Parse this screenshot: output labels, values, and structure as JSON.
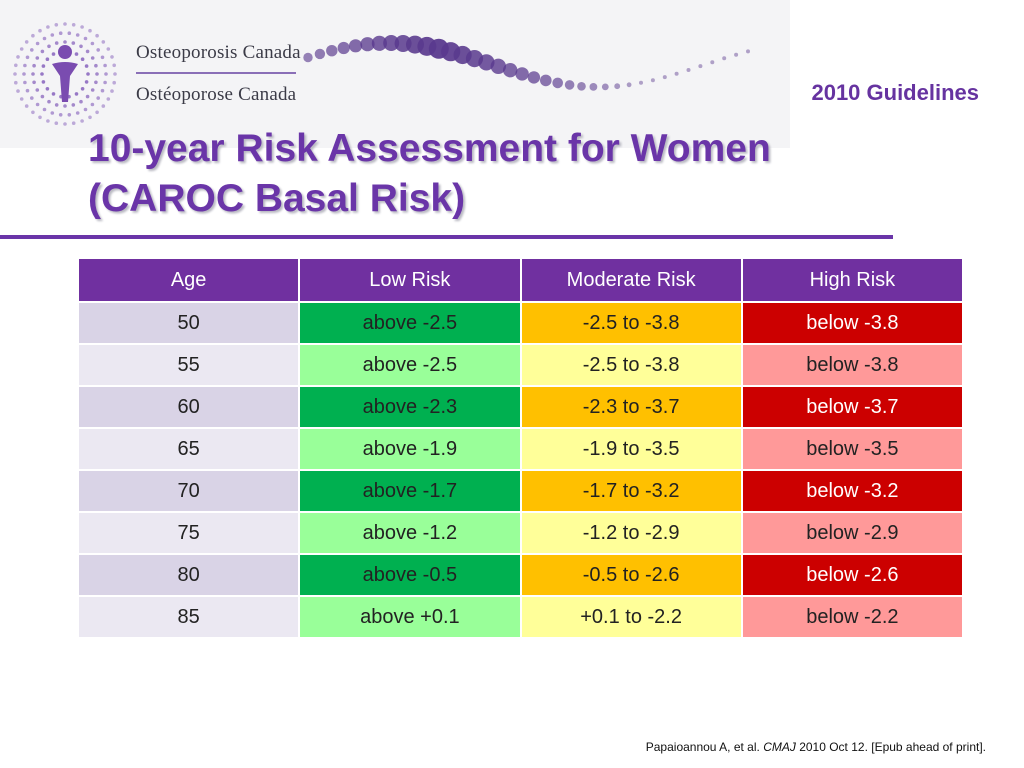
{
  "logo": {
    "name_en": "Osteoporosis Canada",
    "name_fr": "Ostéoporose Canada",
    "icon": "osteoporosis-canada-dotted-figure-logo",
    "dot_color": "#8e6cc0"
  },
  "header": {
    "guidelines": "2010 Guidelines",
    "title_line1": "10-year Risk Assessment for Women",
    "title_line2": "(CAROC Basal Risk)"
  },
  "colors": {
    "accent": "#6a35a8",
    "header_row": "#7030a0",
    "low_dark": "#00b050",
    "low_light": "#99ff99",
    "moderate_dark": "#ffc000",
    "moderate_light": "#ffff99",
    "high_dark": "#cc0000",
    "high_light": "#ff9999"
  },
  "table": {
    "headers": [
      "Age",
      "Low Risk",
      "Moderate Risk",
      "High Risk"
    ],
    "rows": [
      {
        "age": "50",
        "low": "above -2.5",
        "moderate": "-2.5 to -3.8",
        "high": "below -3.8"
      },
      {
        "age": "55",
        "low": "above -2.5",
        "moderate": "-2.5 to -3.8",
        "high": "below -3.8"
      },
      {
        "age": "60",
        "low": "above -2.3",
        "moderate": "-2.3 to -3.7",
        "high": "below -3.7"
      },
      {
        "age": "65",
        "low": "above -1.9",
        "moderate": "-1.9 to -3.5",
        "high": "below -3.5"
      },
      {
        "age": "70",
        "low": "above -1.7",
        "moderate": "-1.7 to -3.2",
        "high": "below -3.2"
      },
      {
        "age": "75",
        "low": "above -1.2",
        "moderate": "-1.2 to -2.9",
        "high": "below -2.9"
      },
      {
        "age": "80",
        "low": "above -0.5",
        "moderate": "-0.5 to -2.6",
        "high": "below -2.6"
      },
      {
        "age": "85",
        "low": "above +0.1",
        "moderate": "+0.1 to -2.2",
        "high": "below -2.2"
      }
    ]
  },
  "citation": {
    "authors": "Papaioannou A, et al. ",
    "journal": "CMAJ",
    "rest": " 2010 Oct 12. [Epub ahead of print]."
  }
}
